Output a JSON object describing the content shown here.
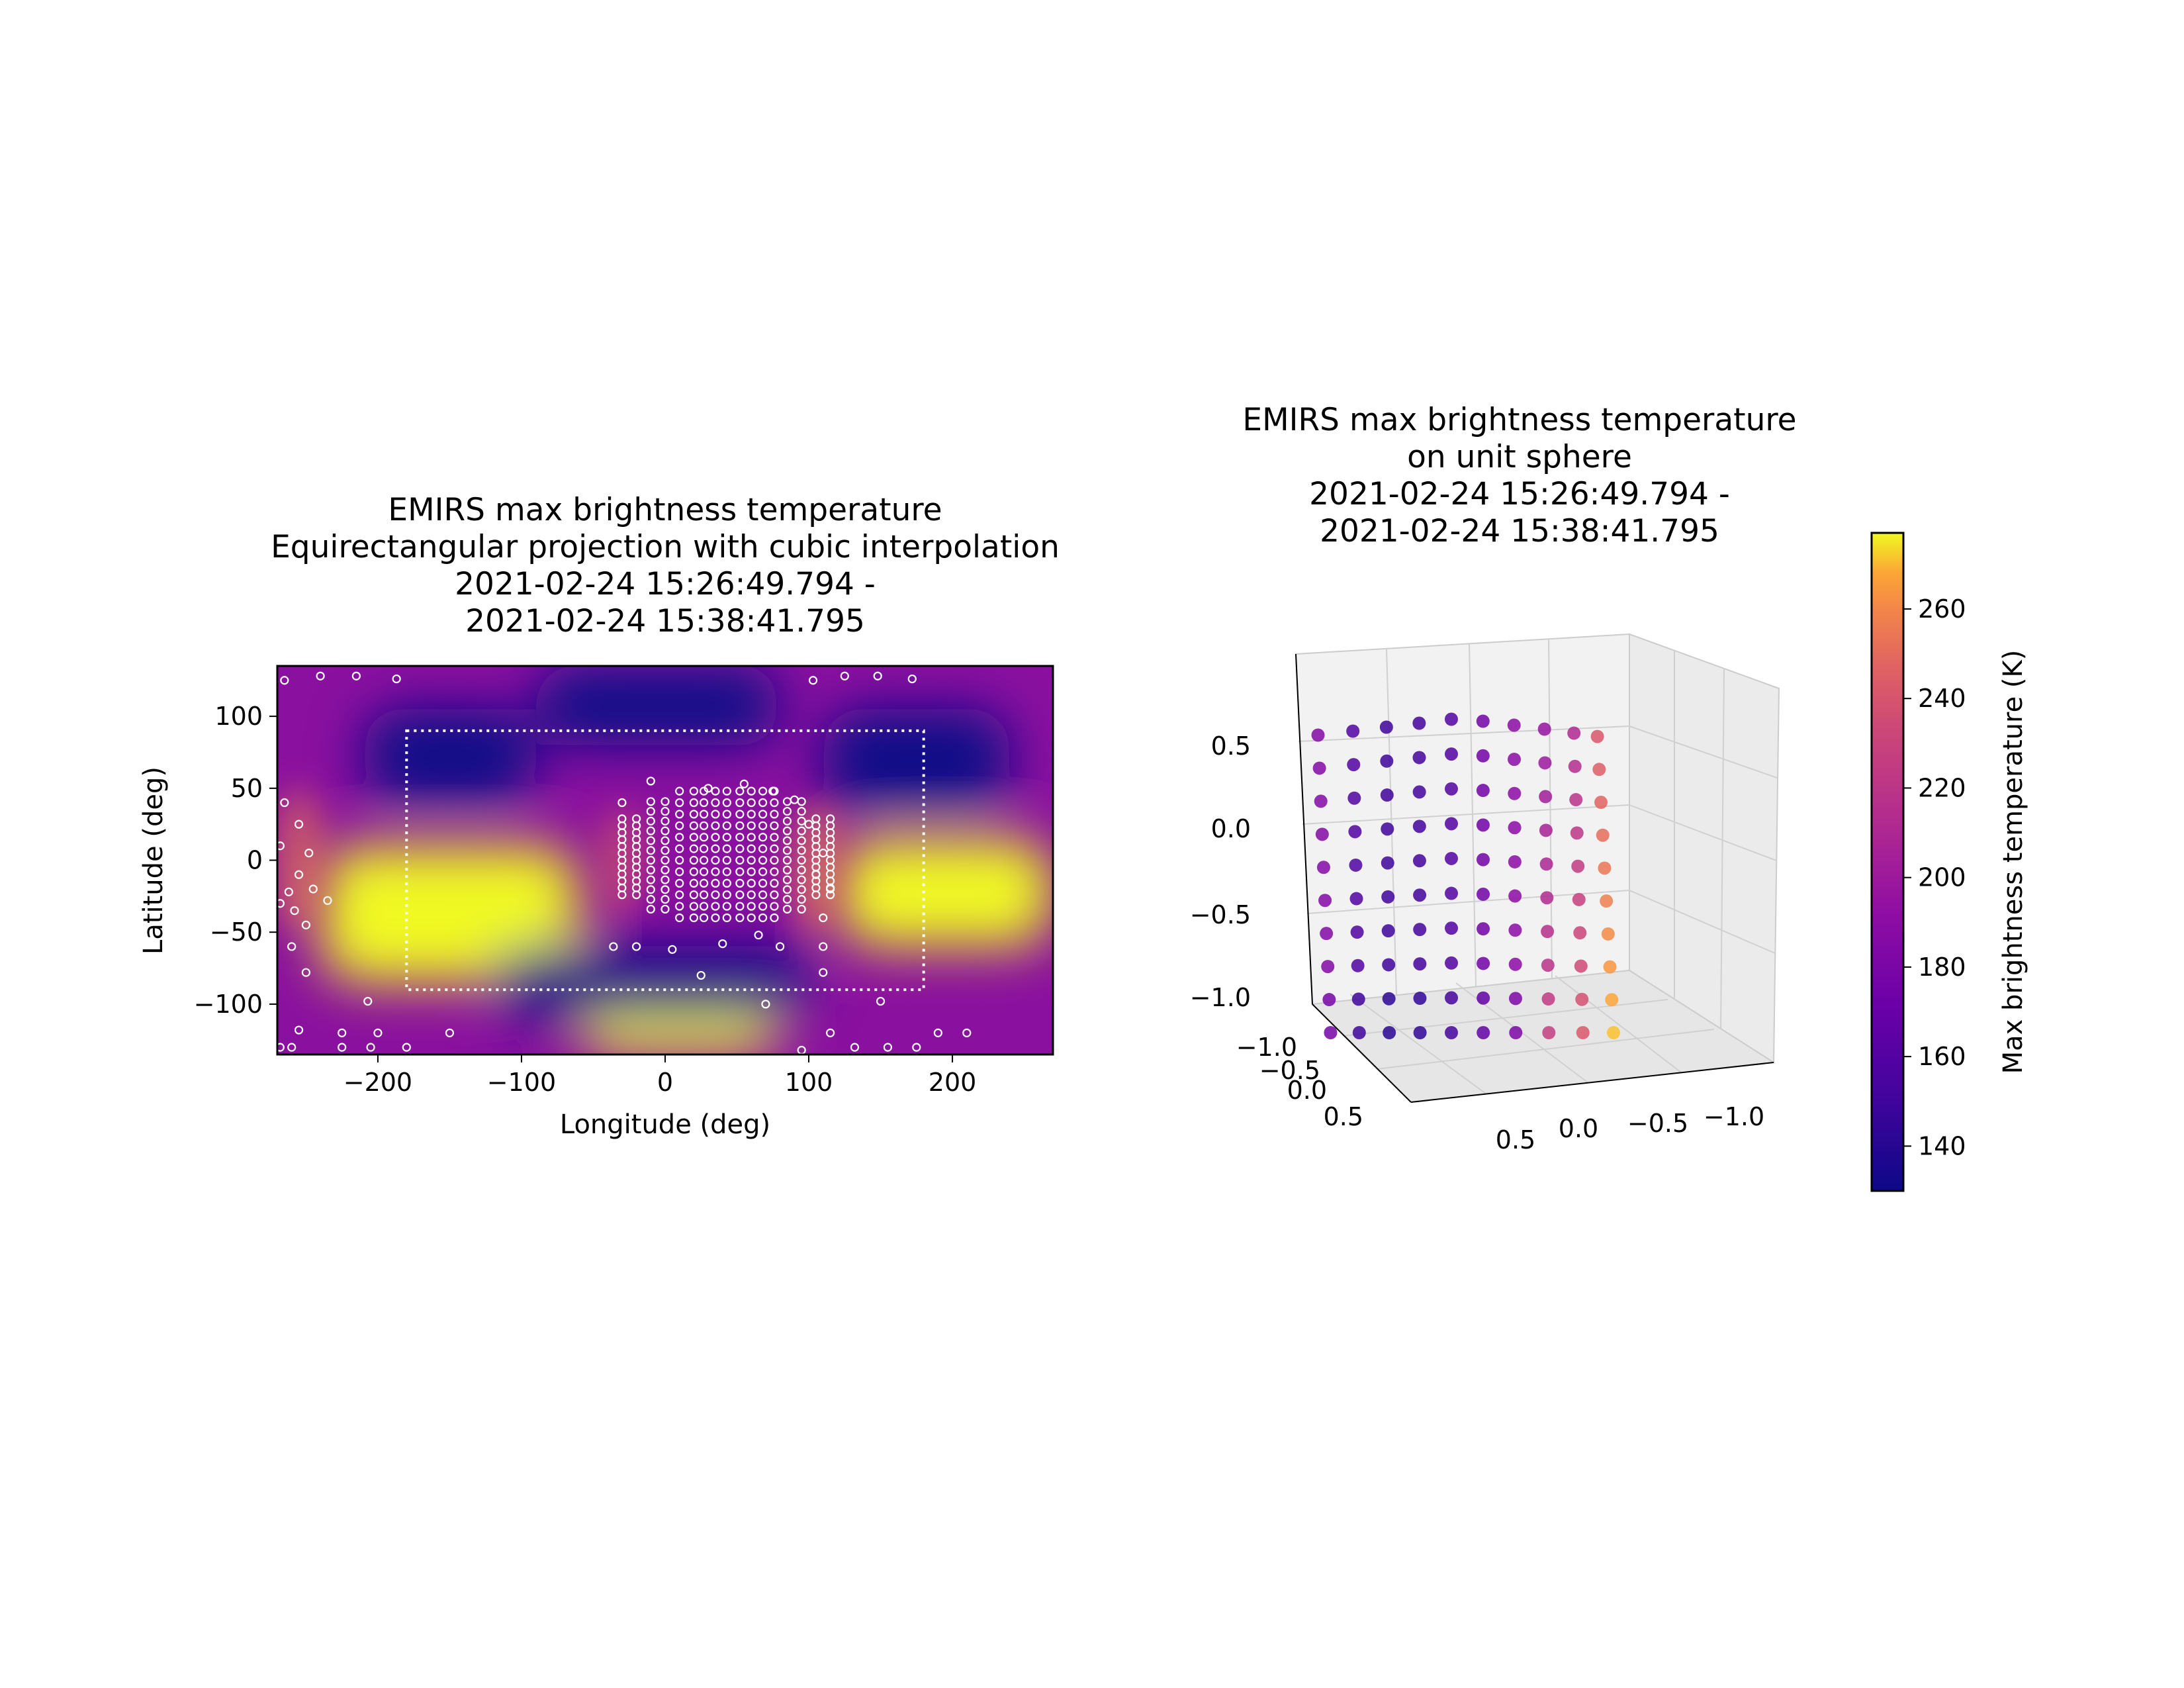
{
  "chart_data": [
    {
      "type": "heatmap",
      "title": [
        "EMIRS max brightness temperature",
        "Equirectangular projection with cubic interpolation",
        "2021-02-24 15:26:49.794 -",
        "2021-02-24 15:38:41.795"
      ],
      "xlabel": "Longitude (deg)",
      "ylabel": "Latitude (deg)",
      "xlim": [
        -270,
        270
      ],
      "ylim": [
        -135,
        135
      ],
      "xticks": [
        -200,
        -100,
        0,
        100,
        200
      ],
      "xtick_labels": [
        "−200",
        "−100",
        "0",
        "100",
        "200"
      ],
      "yticks": [
        100,
        50,
        0,
        -50,
        -100
      ],
      "ytick_labels": [
        "100",
        "50",
        "0",
        "−50",
        "−100"
      ],
      "colormap": "plasma",
      "grid": false,
      "boundary_box": {
        "lon": [
          -180,
          180
        ],
        "lat": [
          -90,
          90
        ],
        "style": "dotted white"
      },
      "regions": [
        {
          "value": "high",
          "lon": [
            -240,
            -60
          ],
          "lat": [
            -85,
            10
          ],
          "color": "#f0f921"
        },
        {
          "value": "high",
          "lon": [
            120,
            270
          ],
          "lat": [
            -60,
            15
          ],
          "color": "#f0f921"
        },
        {
          "value": "high",
          "lon": [
            -60,
            80
          ],
          "lat": [
            -135,
            -105
          ],
          "color": "#f0f921"
        },
        {
          "value": "low",
          "lon": [
            -210,
            -90
          ],
          "lat": [
            40,
            105
          ],
          "color": "#0d0887"
        },
        {
          "value": "low",
          "lon": [
            110,
            240
          ],
          "lat": [
            35,
            105
          ],
          "color": "#0d0887"
        },
        {
          "value": "low",
          "lon": [
            -90,
            80
          ],
          "lat": [
            80,
            135
          ],
          "color": "#0d0887"
        },
        {
          "value": "low",
          "lon": [
            -120,
            100
          ],
          "lat": [
            -110,
            -60
          ],
          "color": "#0d0887"
        }
      ],
      "samples_main": {
        "lon": [
          -30,
          -20,
          -10,
          0,
          10,
          20,
          27,
          35,
          43,
          52,
          60,
          68,
          76,
          85,
          95,
          105,
          115
        ],
        "lat": [
          -40,
          -32,
          -24,
          -16,
          -8,
          0,
          8,
          16,
          24,
          32,
          40,
          48
        ]
      },
      "samples_extra": [
        [
          -265,
          125
        ],
        [
          -240,
          128
        ],
        [
          -215,
          128
        ],
        [
          -187,
          126
        ],
        [
          -255,
          25
        ],
        [
          -248,
          5
        ],
        [
          -255,
          -10
        ],
        [
          -262,
          -22
        ],
        [
          -245,
          -20
        ],
        [
          -235,
          -28
        ],
        [
          -258,
          -35
        ],
        [
          -250,
          -45
        ],
        [
          -260,
          -60
        ],
        [
          -250,
          -78
        ],
        [
          -207,
          -98
        ],
        [
          -255,
          -118
        ],
        [
          -225,
          -120
        ],
        [
          -200,
          -120
        ],
        [
          -260,
          -130
        ],
        [
          -225,
          -130
        ],
        [
          -205,
          -130
        ],
        [
          -180,
          -130
        ],
        [
          -150,
          -120
        ],
        [
          -36,
          -60
        ],
        [
          25,
          -80
        ],
        [
          70,
          -100
        ],
        [
          110,
          -78
        ],
        [
          150,
          -98
        ],
        [
          103,
          125
        ],
        [
          125,
          128
        ],
        [
          148,
          128
        ],
        [
          172,
          126
        ],
        [
          100,
          25
        ],
        [
          110,
          5
        ],
        [
          105,
          -10
        ],
        [
          115,
          -20
        ],
        [
          110,
          -40
        ],
        [
          110,
          -60
        ],
        [
          95,
          -132
        ],
        [
          115,
          -120
        ],
        [
          132,
          -130
        ],
        [
          155,
          -130
        ],
        [
          175,
          -130
        ],
        [
          210,
          -120
        ],
        [
          190,
          -120
        ],
        [
          -265,
          40
        ],
        [
          -268,
          10
        ],
        [
          -268,
          -30
        ],
        [
          -268,
          -130
        ],
        [
          -30,
          40
        ],
        [
          -10,
          55
        ],
        [
          30,
          50
        ],
        [
          55,
          53
        ],
        [
          75,
          48
        ],
        [
          90,
          42
        ],
        [
          -20,
          -60
        ],
        [
          5,
          -62
        ],
        [
          40,
          -58
        ],
        [
          65,
          -52
        ],
        [
          80,
          -60
        ]
      ]
    },
    {
      "type": "scatter",
      "title": [
        "EMIRS max brightness temperature",
        "on unit sphere",
        "2021-02-24 15:26:49.794 -",
        "2021-02-24 15:38:41.795"
      ],
      "projection": "3d",
      "grid": true,
      "zticks": [
        0.5,
        0.0,
        -0.5,
        -1.0
      ],
      "ztick_labels": [
        "0.5",
        "0.0",
        "−0.5",
        "−1.0"
      ],
      "xticks": [
        0.5,
        0.0,
        -0.5,
        -1.0
      ],
      "xtick_labels": [
        "0.5",
        "0.0",
        "−0.5",
        "−1.0"
      ],
      "yticks": [
        -1.0,
        -0.5,
        0.0,
        0.5
      ],
      "ytick_labels": [
        "−1.0",
        "−0.5",
        "0.0",
        "0.5"
      ],
      "colormap": "plasma",
      "colorbar": {
        "label": "Max brightness temperature (K)",
        "range": [
          130,
          277
        ],
        "ticks": [
          140,
          160,
          180,
          200,
          220,
          240,
          260
        ],
        "tick_labels": [
          "140",
          "160",
          "180",
          "200",
          "220",
          "240",
          "260"
        ]
      },
      "points_y_range": [
        0.45,
        -0.9
      ],
      "columns_x": [
        -0.85,
        -0.65,
        -0.45,
        -0.25,
        -0.05,
        0.15,
        0.35,
        0.55,
        0.75,
        0.92
      ],
      "column_temperatures": [
        185,
        158,
        150,
        152,
        160,
        175,
        190,
        205,
        220,
        250
      ]
    }
  ]
}
